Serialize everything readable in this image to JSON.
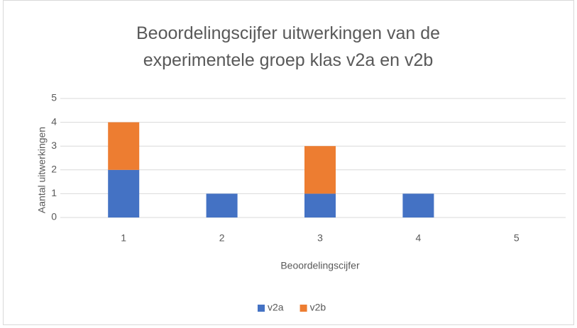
{
  "chart_data": {
    "type": "bar",
    "stacked": true,
    "title": "Beoordelingscijfer uitwerkingen van de experimentele groep klas v2a en v2b",
    "xlabel": "Beoordelingscijfer",
    "ylabel": "Aantal uitwerkingen",
    "categories": [
      "1",
      "2",
      "3",
      "4",
      "5"
    ],
    "series": [
      {
        "name": "v2a",
        "color": "#4472c4",
        "values": [
          2,
          1,
          1,
          1,
          0
        ]
      },
      {
        "name": "v2b",
        "color": "#ed7d31",
        "values": [
          2,
          0,
          2,
          0,
          0
        ]
      }
    ],
    "ylim": [
      0,
      5
    ],
    "yticks": [
      0,
      1,
      2,
      3,
      4,
      5
    ],
    "grid": true,
    "legend": "bottom"
  }
}
